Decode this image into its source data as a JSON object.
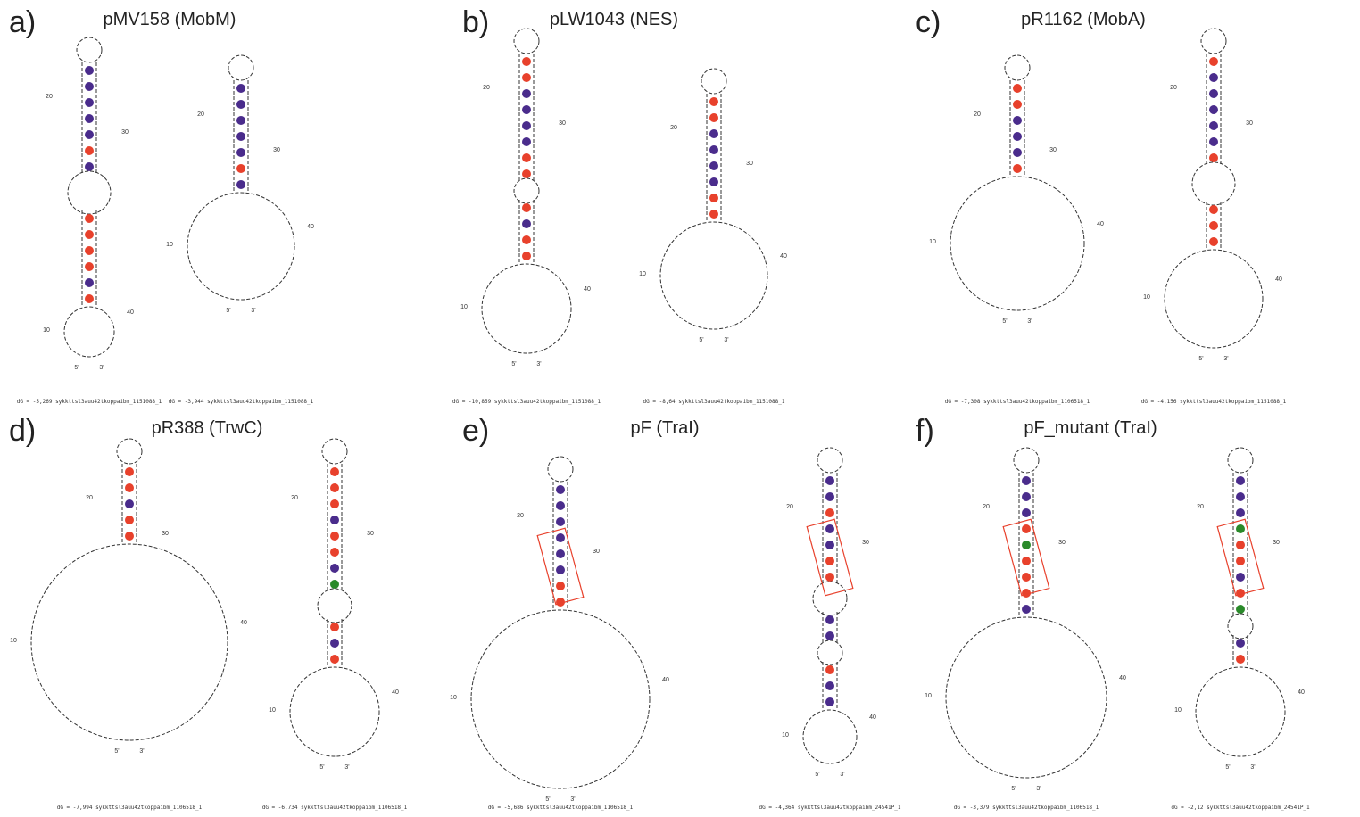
{
  "panels": [
    {
      "letter": "a)",
      "title": "pMV158 (MobM)",
      "structures": [
        {
          "dG": "dG = -5,269 sykkttsl3auu42tkoppaibm_1151088_1",
          "labels": [
            "20",
            "30",
            "10",
            "40",
            "5'",
            "3'"
          ]
        },
        {
          "dG": "dG = -3,944 sykkttsl3auu42tkoppaibm_1151088_1",
          "labels": [
            "20",
            "30",
            "10",
            "40",
            "5'",
            "3'"
          ]
        }
      ]
    },
    {
      "letter": "b)",
      "title": "pLW1043 (NES)",
      "structures": [
        {
          "dG": "dG = -10,859 sykkttsl3auu42tkoppaibm_1151088_1",
          "labels": [
            "20",
            "30",
            "10",
            "40",
            "5'",
            "3'"
          ]
        },
        {
          "dG": "dG = -8,64 sykkttsl3auu42tkoppaibm_1151088_1",
          "labels": [
            "20",
            "30",
            "10",
            "40",
            "5'",
            "3'"
          ]
        }
      ]
    },
    {
      "letter": "c)",
      "title": "pR1162 (MobA)",
      "structures": [
        {
          "dG": "dG = -7,308 sykkttsl3auu42tkoppaibm_1106518_1",
          "labels": [
            "20",
            "30",
            "10",
            "40",
            "5'",
            "3'"
          ]
        },
        {
          "dG": "dG = -4,156 sykkttsl3auu42tkoppaibm_1151088_1",
          "labels": [
            "20",
            "30",
            "10",
            "40",
            "5'",
            "3'"
          ]
        }
      ]
    },
    {
      "letter": "d)",
      "title": "pR388 (TrwC)",
      "structures": [
        {
          "dG": "dG = -7,994 sykkttsl3auu42tkoppaibm_1106518_1",
          "labels": [
            "20",
            "30",
            "10",
            "40",
            "5'",
            "3'"
          ]
        },
        {
          "dG": "dG = -6,734 sykkttsl3auu42tkoppaibm_1106518_1",
          "labels": [
            "20",
            "30",
            "10",
            "40",
            "5'",
            "3'"
          ]
        }
      ]
    },
    {
      "letter": "e)",
      "title": "pF (TraI)",
      "structures": [
        {
          "dG": "dG = -5,686 sykkttsl3auu42tkoppaibm_1106518_1",
          "labels": [
            "20",
            "30",
            "10",
            "40",
            "5'",
            "3'"
          ]
        },
        {
          "dG": "dG = -4,364 sykkttsl3auu42tkoppaibm_24541P_1",
          "labels": [
            "20",
            "30",
            "10",
            "40",
            "5'",
            "3'"
          ]
        }
      ]
    },
    {
      "letter": "f)",
      "title": "pF_mutant (TraI)",
      "structures": [
        {
          "dG": "dG = -3,379 sykkttsl3auu42tkoppaibm_1106518_1",
          "labels": [
            "20",
            "30",
            "10",
            "40",
            "5'",
            "3'"
          ]
        },
        {
          "dG": "dG = -2,12 sykkttsl3auu42tkoppaibm_24541P_1",
          "labels": [
            "20",
            "30",
            "10",
            "40",
            "5'",
            "3'"
          ]
        }
      ]
    }
  ]
}
